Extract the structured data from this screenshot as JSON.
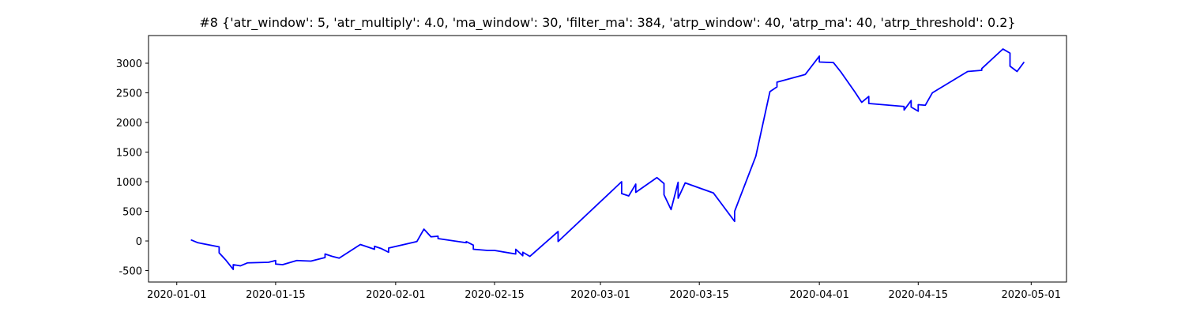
{
  "chart_data": {
    "type": "line",
    "title": "#8 {'atr_window': 5, 'atr_multiply': 4.0, 'ma_window': 30, 'filter_ma': 384, 'atrp_window': 40, 'atrp_ma': 40, 'atrp_threshold': 0.2}",
    "x": [
      "2020-01-03",
      "2020-01-04",
      "2020-01-07",
      "2020-01-07",
      "2020-01-08",
      "2020-01-09",
      "2020-01-09",
      "2020-01-10",
      "2020-01-11",
      "2020-01-14",
      "2020-01-15",
      "2020-01-15",
      "2020-01-16",
      "2020-01-18",
      "2020-01-20",
      "2020-01-22",
      "2020-01-22",
      "2020-01-23",
      "2020-01-24",
      "2020-01-27",
      "2020-01-29",
      "2020-01-29",
      "2020-01-30",
      "2020-01-31",
      "2020-01-31",
      "2020-02-04",
      "2020-02-05",
      "2020-02-06",
      "2020-02-07",
      "2020-02-07",
      "2020-02-11",
      "2020-02-11",
      "2020-02-12",
      "2020-02-12",
      "2020-02-14",
      "2020-02-15",
      "2020-02-18",
      "2020-02-18",
      "2020-02-19",
      "2020-02-19",
      "2020-02-20",
      "2020-02-24",
      "2020-02-24",
      "2020-03-04",
      "2020-03-04",
      "2020-03-05",
      "2020-03-06",
      "2020-03-06",
      "2020-03-09",
      "2020-03-10",
      "2020-03-10",
      "2020-03-11",
      "2020-03-12",
      "2020-03-12",
      "2020-03-13",
      "2020-03-17",
      "2020-03-20",
      "2020-03-20",
      "2020-03-23",
      "2020-03-25",
      "2020-03-26",
      "2020-03-26",
      "2020-03-30",
      "2020-04-01",
      "2020-04-01",
      "2020-04-03",
      "2020-04-04",
      "2020-04-06",
      "2020-04-07",
      "2020-04-08",
      "2020-04-08",
      "2020-04-13",
      "2020-04-13",
      "2020-04-14",
      "2020-04-14",
      "2020-04-15",
      "2020-04-15",
      "2020-04-16",
      "2020-04-17",
      "2020-04-22",
      "2020-04-24",
      "2020-04-24",
      "2020-04-27",
      "2020-04-28",
      "2020-04-28",
      "2020-04-29",
      "2020-04-30"
    ],
    "series": [
      {
        "color": "#0000ff",
        "values": [
          20,
          -30,
          -100,
          -200,
          -330,
          -480,
          -400,
          -420,
          -370,
          -360,
          -330,
          -390,
          -400,
          -330,
          -340,
          -280,
          -220,
          -260,
          -290,
          -60,
          -140,
          -90,
          -130,
          -190,
          -120,
          -10,
          200,
          70,
          80,
          40,
          -30,
          -10,
          -70,
          -140,
          -160,
          -160,
          -220,
          -140,
          -250,
          -190,
          -260,
          160,
          -10,
          1000,
          800,
          760,
          960,
          820,
          1070,
          970,
          780,
          530,
          990,
          720,
          980,
          810,
          330,
          500,
          1430,
          2520,
          2600,
          2680,
          2810,
          3120,
          3020,
          3010,
          2860,
          2520,
          2340,
          2440,
          2320,
          2270,
          2210,
          2370,
          2260,
          2190,
          2300,
          2290,
          2500,
          2860,
          2880,
          2910,
          3240,
          3170,
          2950,
          2860,
          3020
        ]
      }
    ],
    "xlim": [
      "2019-12-28",
      "2020-05-06"
    ],
    "xticks": [
      "2020-01-01",
      "2020-01-15",
      "2020-02-01",
      "2020-02-15",
      "2020-03-01",
      "2020-03-15",
      "2020-04-01",
      "2020-04-15",
      "2020-05-01"
    ],
    "ylim": [
      -693,
      3467
    ],
    "yticks": [
      -500,
      0,
      500,
      1000,
      1500,
      2000,
      2500,
      3000
    ],
    "grid": false
  }
}
